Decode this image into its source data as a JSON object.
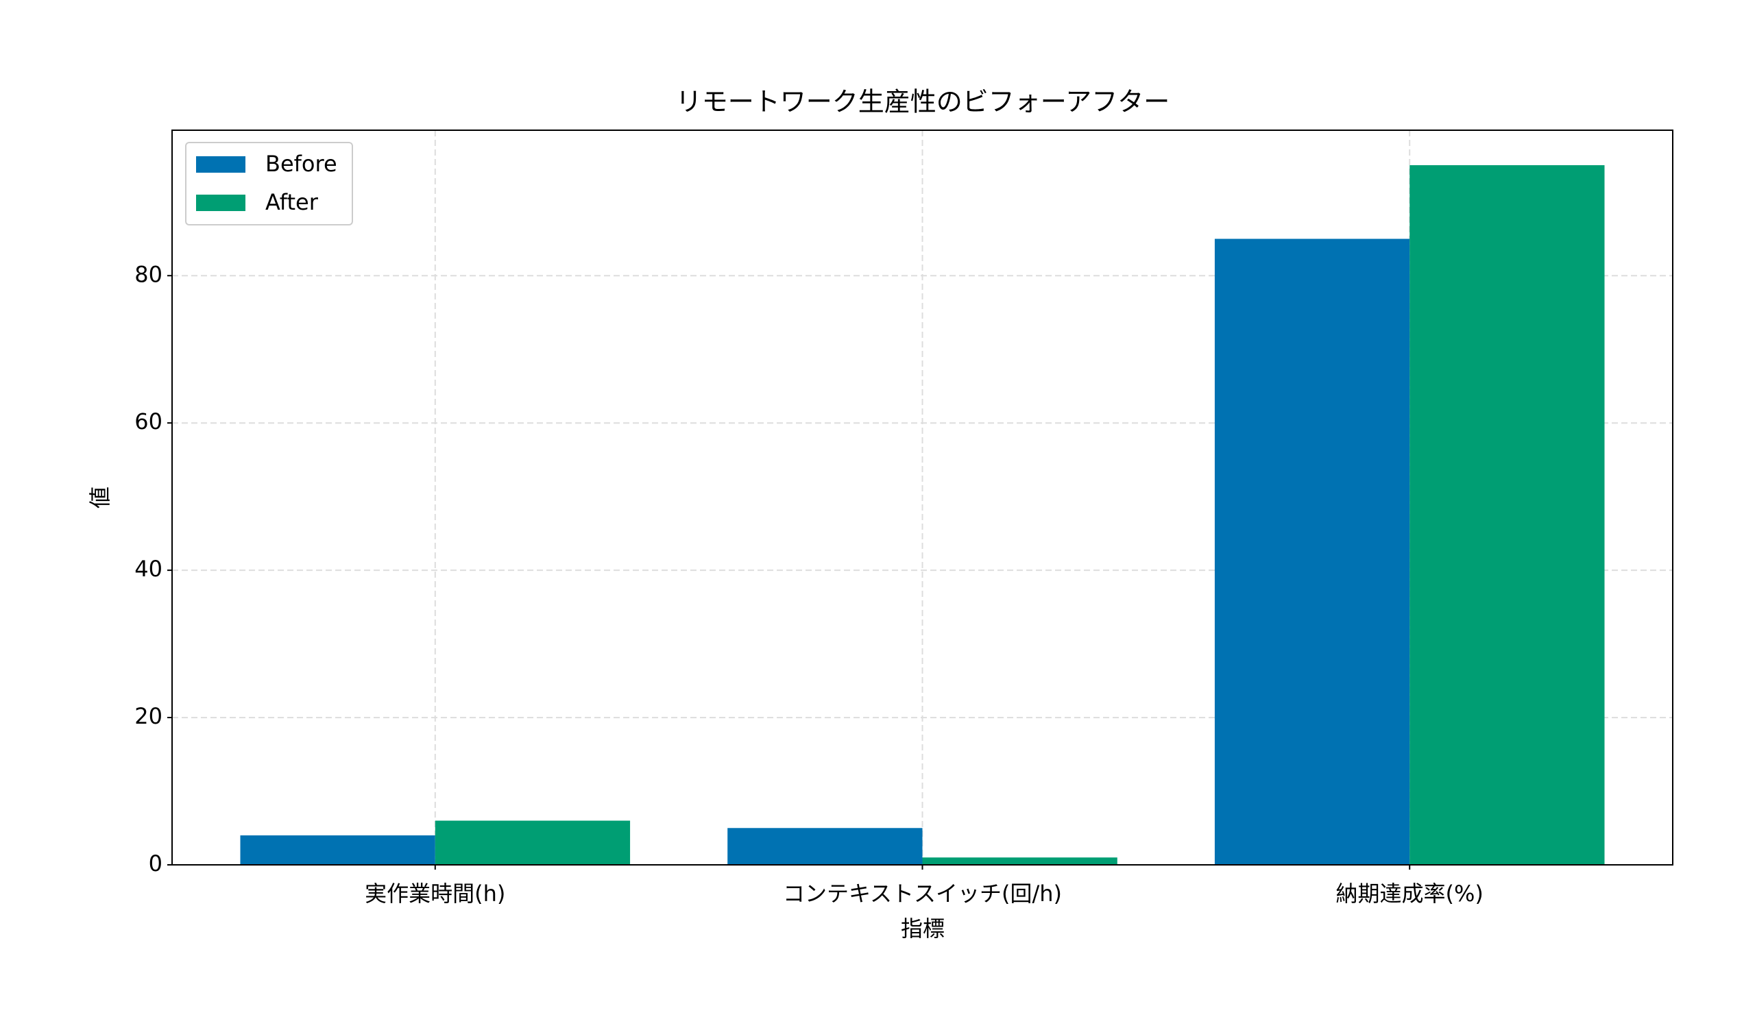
{
  "chart_data": {
    "type": "bar",
    "title": "リモートワーク生産性のビフォーアフター",
    "x_label": "指標",
    "y_label": "値",
    "categories": [
      "実作業時間(h)",
      "コンテキストスイッチ(回/h)",
      "納期達成率(%)"
    ],
    "series": [
      {
        "name": "Before",
        "color": "#0072b2",
        "values": [
          4,
          5,
          85
        ]
      },
      {
        "name": "After",
        "color": "#009e73",
        "values": [
          6,
          1,
          95
        ]
      }
    ],
    "ylim": [
      0,
      99.75
    ],
    "yticks": [
      0,
      20,
      40,
      60,
      80
    ],
    "grid": true,
    "legend": "upper left"
  }
}
